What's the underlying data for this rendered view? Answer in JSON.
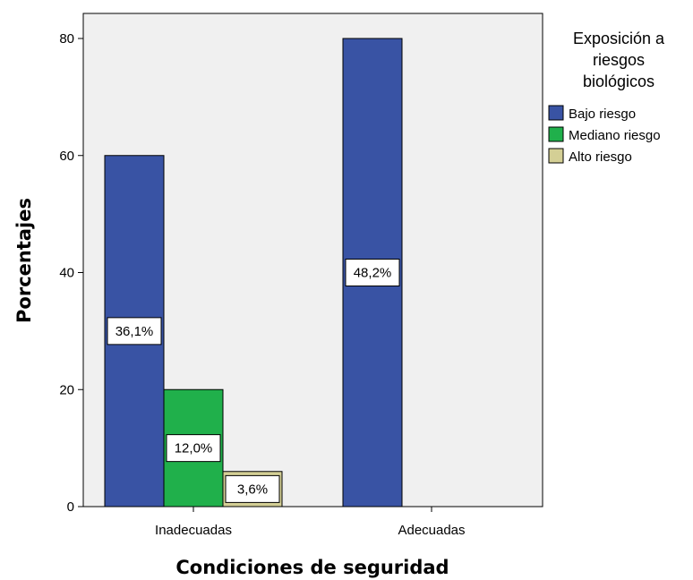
{
  "chart_data": {
    "type": "bar",
    "xlabel": "Condiciones de seguridad",
    "ylabel": "Porcentajes",
    "categories": [
      "Inadecuadas",
      "Adecuadas"
    ],
    "ylim": [
      0,
      80
    ],
    "yticks": [
      0,
      20,
      40,
      60,
      80
    ],
    "grid": false,
    "legend": {
      "title_lines": [
        "Exposición a",
        "riesgos",
        "biológicos"
      ],
      "placement": "right"
    },
    "series": [
      {
        "name": "Bajo riesgo",
        "color": "#3953a4",
        "values": [
          60,
          80
        ],
        "labels": [
          "36,1%",
          "48,2%"
        ]
      },
      {
        "name": "Mediano riesgo",
        "color": "#20b04b",
        "values": [
          20,
          0
        ],
        "labels": [
          "12,0%",
          ""
        ]
      },
      {
        "name": "Alto riesgo",
        "color": "#d4cf95",
        "values": [
          6,
          0
        ],
        "labels": [
          "3,6%",
          ""
        ]
      }
    ]
  }
}
